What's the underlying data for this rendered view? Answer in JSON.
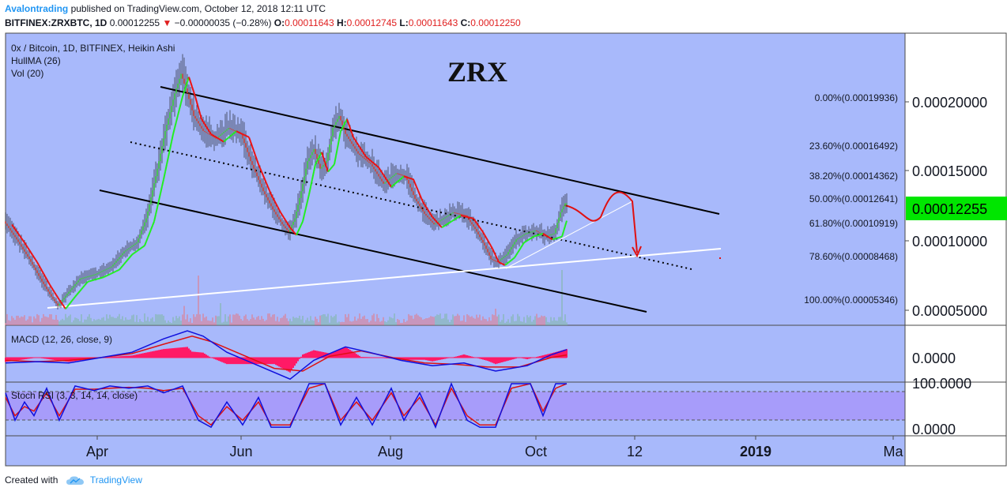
{
  "header": {
    "author": "Avalontrading",
    "published": "published on TradingView.com, October 12, 2018 12:11 UTC",
    "symbol": "BITFINEX:ZRXBTC, 1D",
    "last": "0.00012255",
    "change_arrow": "▼",
    "change": "−0.00000035 (−0.28%)",
    "o_label": "O:",
    "o": "0.00011643",
    "h_label": "H:",
    "h": "0.00012745",
    "l_label": "L:",
    "l": "0.00011643",
    "c_label": "C:",
    "c": "0.00012250"
  },
  "footer": {
    "created_with": "Created with",
    "brand": "TradingView",
    "logo_icon": "tradingview-cloud-icon"
  },
  "colors": {
    "background": "#a8b9fb",
    "up": "#35c035",
    "down": "#c0392b",
    "hull_up": "#22ee22",
    "hull_down": "#ee1111",
    "macd": "#1010dd",
    "signal": "#dd1111",
    "hist": "#ff1a66",
    "price_badge": "#00e600",
    "stoch_band": "#a79cfa"
  },
  "chart_data": {
    "type": "candlestick",
    "title": "ZRX",
    "subtitle": "0x / Bitcoin, 1D, BITFINEX, Heikin Ashi",
    "indicators": [
      "HullMA (26)",
      "Vol (20)"
    ],
    "last_price": 0.00012255,
    "x_ticks": [
      "Apr",
      "Jun",
      "Aug",
      "Oct",
      "12",
      "2019",
      "Ma"
    ],
    "y_ticks": [
      "0.00020000",
      "0.00015000",
      "0.00010000",
      "0.00005000"
    ],
    "ylim": [
      4.1e-05,
      0.000235
    ],
    "fib_levels": [
      {
        "label": "0.00%(0.00019936)",
        "value": 0.00019936
      },
      {
        "label": "23.60%(0.00016492)",
        "value": 0.00016492
      },
      {
        "label": "38.20%(0.00014362)",
        "value": 0.00014362
      },
      {
        "label": "50.00%(0.00012641)",
        "value": 0.00012641
      },
      {
        "label": "61.80%(0.00010919)",
        "value": 0.00010919
      },
      {
        "label": "78.60%(0.00008468)",
        "value": 8.468e-05
      },
      {
        "label": "100.00%(0.00005346)",
        "value": 5.346e-05
      }
    ],
    "price_path": [
      [
        0,
        0.00011
      ],
      [
        8,
        9.8e-05
      ],
      [
        16,
        8.5e-05
      ],
      [
        24,
        7e-05
      ],
      [
        30,
        6e-05
      ],
      [
        34,
        5.4e-05
      ],
      [
        40,
        6.2e-05
      ],
      [
        48,
        7.2e-05
      ],
      [
        58,
        7.5e-05
      ],
      [
        68,
        8e-05
      ],
      [
        76,
        9e-05
      ],
      [
        84,
        9.6e-05
      ],
      [
        90,
        0.000112
      ],
      [
        96,
        0.00014
      ],
      [
        102,
        0.00017
      ],
      [
        108,
        0.000195
      ],
      [
        112,
        0.000208
      ],
      [
        116,
        0.000195
      ],
      [
        120,
        0.00018
      ],
      [
        126,
        0.00017
      ],
      [
        134,
        0.000165
      ],
      [
        142,
        0.000172
      ],
      [
        150,
        0.000168
      ],
      [
        156,
        0.00015
      ],
      [
        164,
        0.00013
      ],
      [
        170,
        0.000118
      ],
      [
        176,
        0.000108
      ],
      [
        180,
        0.000103
      ],
      [
        184,
        0.000112
      ],
      [
        188,
        0.00013
      ],
      [
        192,
        0.00015
      ],
      [
        196,
        0.000158
      ],
      [
        200,
        0.000145
      ],
      [
        204,
        0.00015
      ],
      [
        208,
        0.000172
      ],
      [
        212,
        0.00018
      ],
      [
        216,
        0.000168
      ],
      [
        224,
        0.000155
      ],
      [
        232,
        0.000148
      ],
      [
        240,
        0.000135
      ],
      [
        248,
        0.000142
      ],
      [
        254,
        0.00014
      ],
      [
        260,
        0.000125
      ],
      [
        266,
        0.000115
      ],
      [
        272,
        0.000108
      ],
      [
        278,
        0.000112
      ],
      [
        284,
        0.000116
      ],
      [
        292,
        0.000114
      ],
      [
        298,
        0.000105
      ],
      [
        304,
        9.4e-05
      ],
      [
        308,
        8.5e-05
      ],
      [
        312,
        8.3e-05
      ],
      [
        318,
        8.8e-05
      ],
      [
        324,
        9.8e-05
      ],
      [
        330,
        0.000102
      ],
      [
        336,
        0.000104
      ],
      [
        342,
        0.0001
      ],
      [
        348,
        0.000102
      ],
      [
        352,
        0.000116
      ],
      [
        355,
        0.000122
      ]
    ],
    "volume_peaks": [
      [
        113,
        0.35
      ],
      [
        122,
        0.9
      ],
      [
        136,
        0.4
      ],
      [
        215,
        0.2
      ],
      [
        310,
        0.3
      ],
      [
        352,
        1.0
      ]
    ],
    "macd": {
      "label": "MACD (12, 26, close, 9)",
      "y_ticks": [
        "0.0000"
      ],
      "line_path": [
        [
          0,
          -0.2
        ],
        [
          20,
          -0.15
        ],
        [
          40,
          -0.2
        ],
        [
          60,
          0.0
        ],
        [
          80,
          0.2
        ],
        [
          100,
          0.7
        ],
        [
          115,
          1.0
        ],
        [
          125,
          0.8
        ],
        [
          140,
          0.2
        ],
        [
          160,
          -0.3
        ],
        [
          180,
          -0.8
        ],
        [
          195,
          -0.1
        ],
        [
          215,
          0.4
        ],
        [
          230,
          0.2
        ],
        [
          250,
          -0.1
        ],
        [
          270,
          -0.3
        ],
        [
          290,
          -0.2
        ],
        [
          310,
          -0.5
        ],
        [
          330,
          -0.3
        ],
        [
          345,
          0.1
        ],
        [
          355,
          0.3
        ]
      ],
      "signal_path": [
        [
          0,
          -0.1
        ],
        [
          20,
          -0.15
        ],
        [
          40,
          -0.1
        ],
        [
          60,
          0.0
        ],
        [
          80,
          0.15
        ],
        [
          100,
          0.5
        ],
        [
          118,
          0.8
        ],
        [
          130,
          0.6
        ],
        [
          150,
          0.1
        ],
        [
          170,
          -0.4
        ],
        [
          188,
          -0.5
        ],
        [
          205,
          0.05
        ],
        [
          225,
          0.25
        ],
        [
          245,
          0.0
        ],
        [
          265,
          -0.2
        ],
        [
          285,
          -0.25
        ],
        [
          305,
          -0.35
        ],
        [
          325,
          -0.35
        ],
        [
          345,
          0.0
        ],
        [
          355,
          0.1
        ]
      ]
    },
    "stoch_rsi": {
      "label": "Stoch RSI (3, 3, 14, 14, close)",
      "y_ticks": [
        "100.0000",
        "0.0000"
      ],
      "k_path": [
        [
          0,
          80
        ],
        [
          6,
          20
        ],
        [
          12,
          60
        ],
        [
          18,
          30
        ],
        [
          26,
          90
        ],
        [
          34,
          20
        ],
        [
          44,
          95
        ],
        [
          56,
          85
        ],
        [
          66,
          95
        ],
        [
          78,
          90
        ],
        [
          90,
          95
        ],
        [
          100,
          80
        ],
        [
          112,
          95
        ],
        [
          122,
          20
        ],
        [
          130,
          5
        ],
        [
          140,
          60
        ],
        [
          150,
          10
        ],
        [
          160,
          70
        ],
        [
          168,
          5
        ],
        [
          180,
          5
        ],
        [
          192,
          100
        ],
        [
          202,
          100
        ],
        [
          212,
          10
        ],
        [
          222,
          70
        ],
        [
          232,
          10
        ],
        [
          244,
          90
        ],
        [
          252,
          20
        ],
        [
          262,
          80
        ],
        [
          272,
          5
        ],
        [
          282,
          100
        ],
        [
          292,
          20
        ],
        [
          300,
          5
        ],
        [
          310,
          5
        ],
        [
          320,
          100
        ],
        [
          332,
          100
        ],
        [
          340,
          30
        ],
        [
          348,
          100
        ],
        [
          355,
          100
        ]
      ],
      "d_path": [
        [
          0,
          70
        ],
        [
          6,
          30
        ],
        [
          12,
          50
        ],
        [
          18,
          40
        ],
        [
          26,
          80
        ],
        [
          34,
          30
        ],
        [
          44,
          88
        ],
        [
          56,
          88
        ],
        [
          66,
          90
        ],
        [
          78,
          92
        ],
        [
          90,
          90
        ],
        [
          100,
          85
        ],
        [
          112,
          90
        ],
        [
          122,
          30
        ],
        [
          130,
          10
        ],
        [
          140,
          50
        ],
        [
          150,
          20
        ],
        [
          160,
          60
        ],
        [
          168,
          10
        ],
        [
          180,
          10
        ],
        [
          192,
          90
        ],
        [
          202,
          100
        ],
        [
          212,
          20
        ],
        [
          222,
          60
        ],
        [
          232,
          20
        ],
        [
          244,
          80
        ],
        [
          252,
          30
        ],
        [
          262,
          70
        ],
        [
          272,
          10
        ],
        [
          282,
          90
        ],
        [
          292,
          30
        ],
        [
          300,
          10
        ],
        [
          310,
          10
        ],
        [
          320,
          90
        ],
        [
          332,
          100
        ],
        [
          340,
          40
        ],
        [
          348,
          90
        ],
        [
          355,
          100
        ]
      ]
    }
  }
}
